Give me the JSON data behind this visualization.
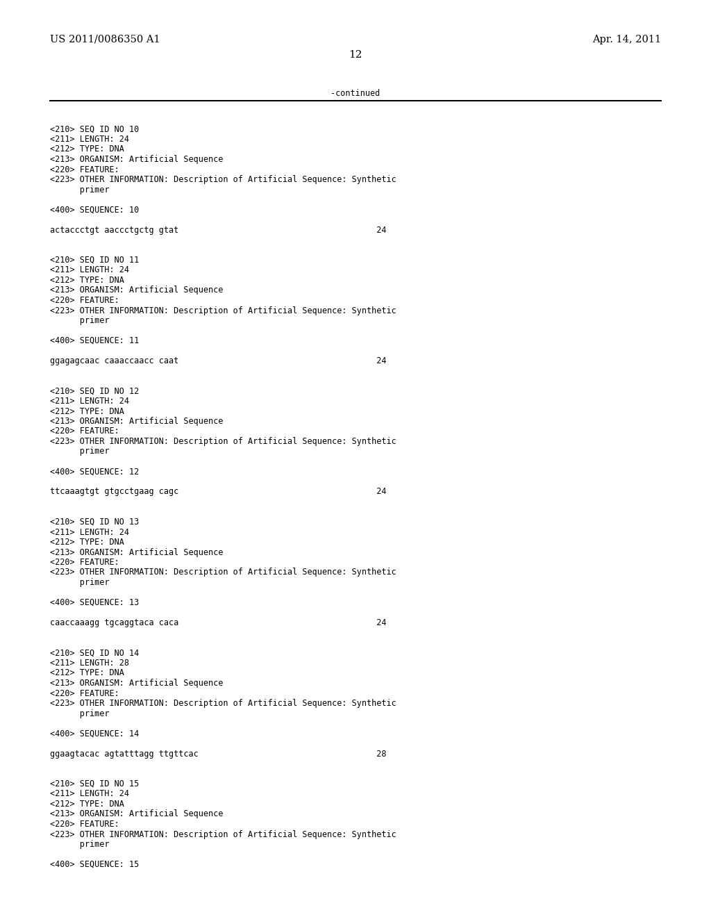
{
  "header_left": "US 2011/0086350 A1",
  "header_right": "Apr. 14, 2011",
  "page_number": "12",
  "continued_label": "-continued",
  "background_color": "#ffffff",
  "text_color": "#000000",
  "font_size_header": 10.5,
  "font_size_body": 8.5,
  "font_size_page": 11,
  "body_lines": [
    "",
    "<210> SEQ ID NO 10",
    "<211> LENGTH: 24",
    "<212> TYPE: DNA",
    "<213> ORGANISM: Artificial Sequence",
    "<220> FEATURE:",
    "<223> OTHER INFORMATION: Description of Artificial Sequence: Synthetic",
    "      primer",
    "",
    "<400> SEQUENCE: 10",
    "",
    "actaccctgt aaccctgctg gtat                                        24",
    "",
    "",
    "<210> SEQ ID NO 11",
    "<211> LENGTH: 24",
    "<212> TYPE: DNA",
    "<213> ORGANISM: Artificial Sequence",
    "<220> FEATURE:",
    "<223> OTHER INFORMATION: Description of Artificial Sequence: Synthetic",
    "      primer",
    "",
    "<400> SEQUENCE: 11",
    "",
    "ggagagcaac caaaccaacc caat                                        24",
    "",
    "",
    "<210> SEQ ID NO 12",
    "<211> LENGTH: 24",
    "<212> TYPE: DNA",
    "<213> ORGANISM: Artificial Sequence",
    "<220> FEATURE:",
    "<223> OTHER INFORMATION: Description of Artificial Sequence: Synthetic",
    "      primer",
    "",
    "<400> SEQUENCE: 12",
    "",
    "ttcaaagtgt gtgcctgaag cagc                                        24",
    "",
    "",
    "<210> SEQ ID NO 13",
    "<211> LENGTH: 24",
    "<212> TYPE: DNA",
    "<213> ORGANISM: Artificial Sequence",
    "<220> FEATURE:",
    "<223> OTHER INFORMATION: Description of Artificial Sequence: Synthetic",
    "      primer",
    "",
    "<400> SEQUENCE: 13",
    "",
    "caaccaaagg tgcaggtaca caca                                        24",
    "",
    "",
    "<210> SEQ ID NO 14",
    "<211> LENGTH: 28",
    "<212> TYPE: DNA",
    "<213> ORGANISM: Artificial Sequence",
    "<220> FEATURE:",
    "<223> OTHER INFORMATION: Description of Artificial Sequence: Synthetic",
    "      primer",
    "",
    "<400> SEQUENCE: 14",
    "",
    "ggaagtacac agtatttagg ttgttcac                                    28",
    "",
    "",
    "<210> SEQ ID NO 15",
    "<211> LENGTH: 24",
    "<212> TYPE: DNA",
    "<213> ORGANISM: Artificial Sequence",
    "<220> FEATURE:",
    "<223> OTHER INFORMATION: Description of Artificial Sequence: Synthetic",
    "      primer",
    "",
    "<400> SEQUENCE: 15"
  ]
}
